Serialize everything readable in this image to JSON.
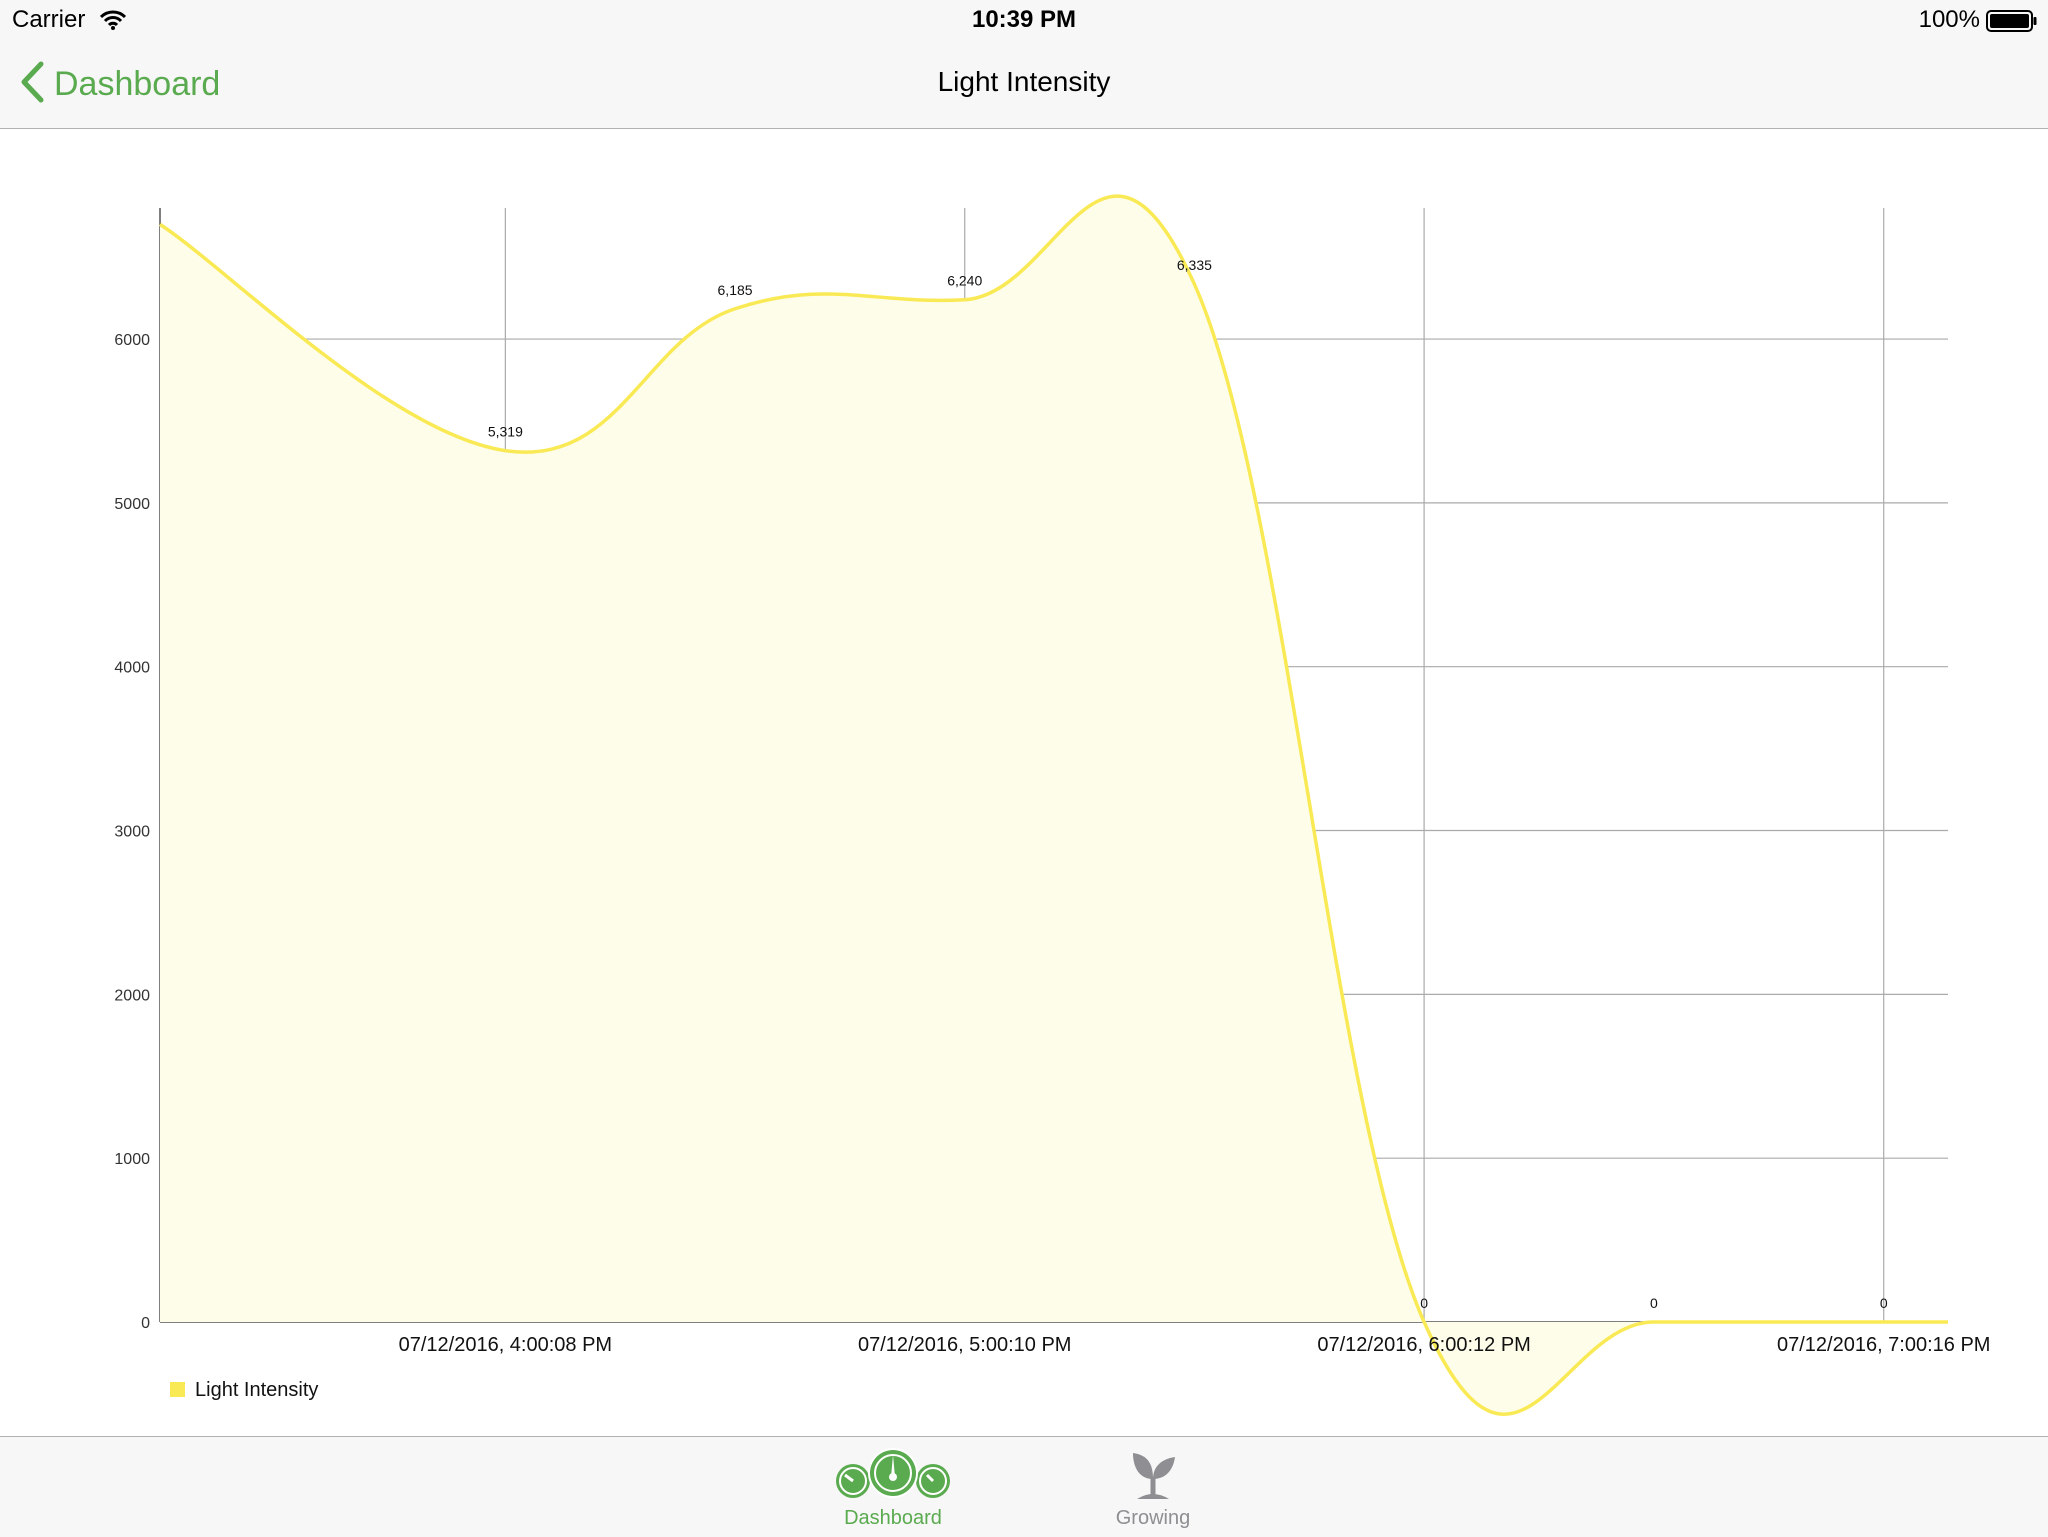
{
  "status_bar": {
    "carrier": "Carrier",
    "time": "10:39 PM",
    "battery": "100%"
  },
  "nav": {
    "back_label": "Dashboard",
    "title": "Light Intensity"
  },
  "colors": {
    "accent": "#5aaa4f",
    "series": "#f9ea55",
    "fill": "#fefdea",
    "inactive": "#8e8e93"
  },
  "chart_data": {
    "type": "area",
    "series": [
      {
        "name": "Light Intensity",
        "x": [
          "07/12/2016, 3:15:00 PM",
          "07/12/2016, 4:00:08 PM",
          "07/12/2016, 4:30:09 PM",
          "07/12/2016, 5:00:10 PM",
          "07/12/2016, 5:30:11 PM",
          "07/12/2016, 6:00:12 PM",
          "07/12/2016, 6:30:14 PM",
          "07/12/2016, 7:00:16 PM"
        ],
        "values": [
          6700,
          5319,
          6185,
          6240,
          6335,
          0,
          0,
          0
        ]
      }
    ],
    "point_labels": [
      "",
      "5,319",
      "6,185",
      "6,240",
      "6,335",
      "0",
      "0",
      "0"
    ],
    "x_ticks": [
      "07/12/2016, 4:00:08 PM",
      "07/12/2016, 5:00:10 PM",
      "07/12/2016, 6:00:12 PM",
      "07/12/2016, 7:00:16 PM"
    ],
    "y_ticks": [
      "0",
      "1000",
      "2000",
      "3000",
      "4000",
      "5000",
      "6000"
    ],
    "ylim": [
      0,
      6800
    ],
    "legend": {
      "label": "Light Intensity",
      "position": "bottom-left"
    },
    "grid": true
  },
  "tabs": [
    {
      "label": "Dashboard",
      "icon": "dashboard-gauge-icon",
      "active": true
    },
    {
      "label": "Growing",
      "icon": "sprout-icon",
      "active": false
    }
  ]
}
